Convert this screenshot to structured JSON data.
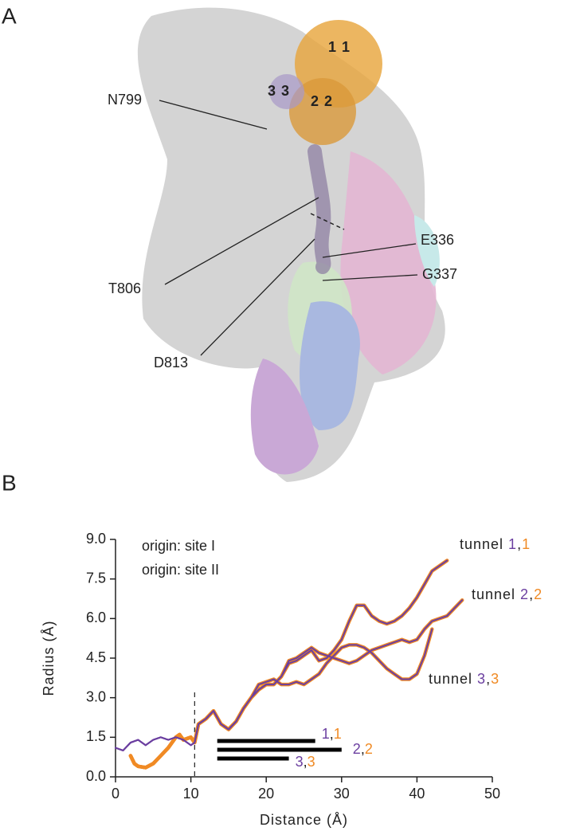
{
  "panels": [
    "A",
    "B"
  ],
  "structure": {
    "residue_labels": [
      "N799",
      "T806",
      "D813",
      "E336",
      "G337"
    ],
    "sphere_labels": [
      [
        "1",
        "1"
      ],
      [
        "2",
        "2"
      ],
      [
        "3",
        "3"
      ]
    ]
  },
  "chart_data": {
    "type": "line",
    "xlabel": "Distance (Å)",
    "ylabel": "Radius (Å)",
    "xlim": [
      0,
      50
    ],
    "ylim": [
      0,
      9
    ],
    "xticks": [
      0,
      10,
      20,
      30,
      40,
      50
    ],
    "yticks": [
      {
        "value": 0,
        "label": "0.0"
      },
      {
        "value": 1.5,
        "label": "1.5"
      },
      {
        "value": 3,
        "label": "3.0"
      },
      {
        "value": 4.5,
        "label": "4.5"
      },
      {
        "value": 6,
        "label": "6.0"
      },
      {
        "value": 7.5,
        "label": "7.5"
      },
      {
        "value": 9,
        "label": "9.0"
      }
    ],
    "dashed_x": 10.5,
    "series": [
      {
        "name": "origin: site I",
        "color": "#f08a24",
        "tunnels": [
          {
            "x": [
              2,
              2.5,
              3,
              4,
              5,
              6,
              7,
              8,
              8.5,
              9,
              10,
              10.5,
              11,
              12,
              13,
              14,
              15,
              16,
              17,
              18,
              19,
              20,
              21,
              22,
              23,
              24,
              25,
              26,
              27,
              28,
              29,
              30,
              31,
              32,
              33,
              34,
              35,
              36,
              37,
              38,
              39,
              40,
              41,
              42,
              43,
              44
            ],
            "values": [
              0.8,
              0.5,
              0.4,
              0.35,
              0.5,
              0.8,
              1.1,
              1.5,
              1.6,
              1.4,
              1.5,
              1.3,
              2.0,
              2.2,
              2.5,
              2.0,
              1.8,
              2.1,
              2.6,
              3.0,
              3.3,
              3.5,
              3.5,
              3.8,
              4.3,
              4.4,
              4.6,
              4.8,
              4.4,
              4.5,
              4.8,
              5.2,
              5.9,
              6.5,
              6.5,
              6.1,
              5.9,
              5.8,
              5.9,
              6.1,
              6.4,
              6.8,
              7.3,
              7.8,
              8.0,
              8.2
            ]
          },
          {
            "x": [
              2,
              2.5,
              3,
              4,
              5,
              6,
              7,
              8,
              8.5,
              9,
              10,
              10.5,
              11,
              12,
              13,
              14,
              15,
              16,
              17,
              18,
              19,
              20,
              21,
              22,
              23,
              24,
              25,
              26,
              27,
              28,
              29,
              30,
              31,
              32,
              33,
              34,
              35,
              36,
              37,
              38,
              39,
              40,
              41,
              42,
              43,
              44,
              45,
              46
            ],
            "values": [
              0.8,
              0.5,
              0.4,
              0.35,
              0.5,
              0.8,
              1.1,
              1.5,
              1.6,
              1.4,
              1.5,
              1.3,
              2.0,
              2.2,
              2.5,
              2.0,
              1.8,
              2.1,
              2.6,
              3.0,
              3.3,
              3.5,
              3.5,
              3.8,
              4.4,
              4.5,
              4.7,
              4.9,
              4.7,
              4.6,
              4.5,
              4.4,
              4.3,
              4.4,
              4.6,
              4.8,
              4.9,
              5.0,
              5.1,
              5.2,
              5.1,
              5.2,
              5.6,
              5.9,
              6.0,
              6.1,
              6.4,
              6.7
            ]
          },
          {
            "x": [
              2,
              2.5,
              3,
              4,
              5,
              6,
              7,
              8,
              8.5,
              9,
              10,
              10.5,
              11,
              12,
              13,
              14,
              15,
              16,
              17,
              18,
              19,
              20,
              21,
              22,
              23,
              24,
              25,
              26,
              27,
              28,
              29,
              30,
              31,
              32,
              33,
              34,
              35,
              36,
              37,
              38,
              39,
              40,
              41,
              42
            ],
            "values": [
              0.8,
              0.5,
              0.4,
              0.35,
              0.5,
              0.8,
              1.1,
              1.5,
              1.6,
              1.4,
              1.5,
              1.3,
              2.0,
              2.2,
              2.5,
              2.0,
              1.8,
              2.1,
              2.6,
              3.0,
              3.5,
              3.6,
              3.7,
              3.5,
              3.5,
              3.6,
              3.5,
              3.7,
              3.9,
              4.3,
              4.6,
              4.9,
              5.0,
              5.0,
              4.9,
              4.7,
              4.4,
              4.1,
              3.9,
              3.7,
              3.7,
              3.9,
              4.6,
              5.6
            ]
          }
        ]
      },
      {
        "name": "origin: site II",
        "color": "#6b3fa0",
        "tunnels": [
          {
            "x": [
              0,
              1,
              2,
              3,
              4,
              5,
              6,
              7,
              8,
              9,
              10,
              10.5,
              11,
              12,
              13,
              14,
              15,
              16,
              17,
              18,
              19,
              20,
              21,
              22,
              23,
              24,
              25,
              26,
              27,
              28,
              29,
              30,
              31,
              32,
              33,
              34,
              35,
              36,
              37,
              38,
              39,
              40,
              41,
              42,
              43,
              44
            ],
            "values": [
              1.1,
              1.0,
              1.3,
              1.4,
              1.2,
              1.4,
              1.5,
              1.4,
              1.5,
              1.4,
              1.2,
              1.3,
              2.0,
              2.2,
              2.5,
              2.0,
              1.8,
              2.1,
              2.6,
              3.0,
              3.3,
              3.5,
              3.5,
              3.8,
              4.3,
              4.4,
              4.6,
              4.8,
              4.4,
              4.5,
              4.8,
              5.2,
              5.9,
              6.5,
              6.5,
              6.1,
              5.9,
              5.8,
              5.9,
              6.1,
              6.4,
              6.8,
              7.3,
              7.8,
              8.0,
              8.2
            ]
          },
          {
            "x": [
              0,
              1,
              2,
              3,
              4,
              5,
              6,
              7,
              8,
              9,
              10,
              10.5,
              11,
              12,
              13,
              14,
              15,
              16,
              17,
              18,
              19,
              20,
              21,
              22,
              23,
              24,
              25,
              26,
              27,
              28,
              29,
              30,
              31,
              32,
              33,
              34,
              35,
              36,
              37,
              38,
              39,
              40,
              41,
              42,
              43,
              44,
              45,
              46
            ],
            "values": [
              1.1,
              1.0,
              1.3,
              1.4,
              1.2,
              1.4,
              1.5,
              1.4,
              1.5,
              1.4,
              1.2,
              1.3,
              2.0,
              2.2,
              2.5,
              2.0,
              1.8,
              2.1,
              2.6,
              3.0,
              3.3,
              3.5,
              3.5,
              3.8,
              4.4,
              4.5,
              4.7,
              4.9,
              4.7,
              4.6,
              4.5,
              4.4,
              4.3,
              4.4,
              4.6,
              4.8,
              4.9,
              5.0,
              5.1,
              5.2,
              5.1,
              5.2,
              5.6,
              5.9,
              6.0,
              6.1,
              6.4,
              6.7
            ]
          },
          {
            "x": [
              0,
              1,
              2,
              3,
              4,
              5,
              6,
              7,
              8,
              9,
              10,
              10.5,
              11,
              12,
              13,
              14,
              15,
              16,
              17,
              18,
              19,
              20,
              21,
              22,
              23,
              24,
              25,
              26,
              27,
              28,
              29,
              30,
              31,
              32,
              33,
              34,
              35,
              36,
              37,
              38,
              39,
              40,
              41,
              42
            ],
            "values": [
              1.1,
              1.0,
              1.3,
              1.4,
              1.2,
              1.4,
              1.5,
              1.4,
              1.5,
              1.4,
              1.2,
              1.3,
              2.0,
              2.2,
              2.5,
              2.0,
              1.8,
              2.1,
              2.6,
              3.0,
              3.5,
              3.6,
              3.7,
              3.5,
              3.5,
              3.6,
              3.5,
              3.7,
              3.9,
              4.3,
              4.6,
              4.9,
              5.0,
              5.0,
              4.9,
              4.7,
              4.4,
              4.1,
              3.9,
              3.7,
              3.7,
              3.9,
              4.6,
              5.6
            ]
          }
        ]
      }
    ],
    "tunnel_labels": [
      [
        "tunnel ",
        "1",
        ",",
        "1"
      ],
      [
        "tunnel ",
        "2",
        ",",
        "2"
      ],
      [
        "tunnel ",
        "3",
        ",",
        "3"
      ]
    ],
    "bars": [
      {
        "start": 13.5,
        "end": 26.5,
        "label": [
          "1",
          ",",
          "1"
        ]
      },
      {
        "start": 13.5,
        "end": 30,
        "label": [
          "2",
          ",",
          "2"
        ]
      },
      {
        "start": 13.5,
        "end": 23,
        "label": [
          "3",
          ",",
          "3"
        ]
      }
    ]
  }
}
